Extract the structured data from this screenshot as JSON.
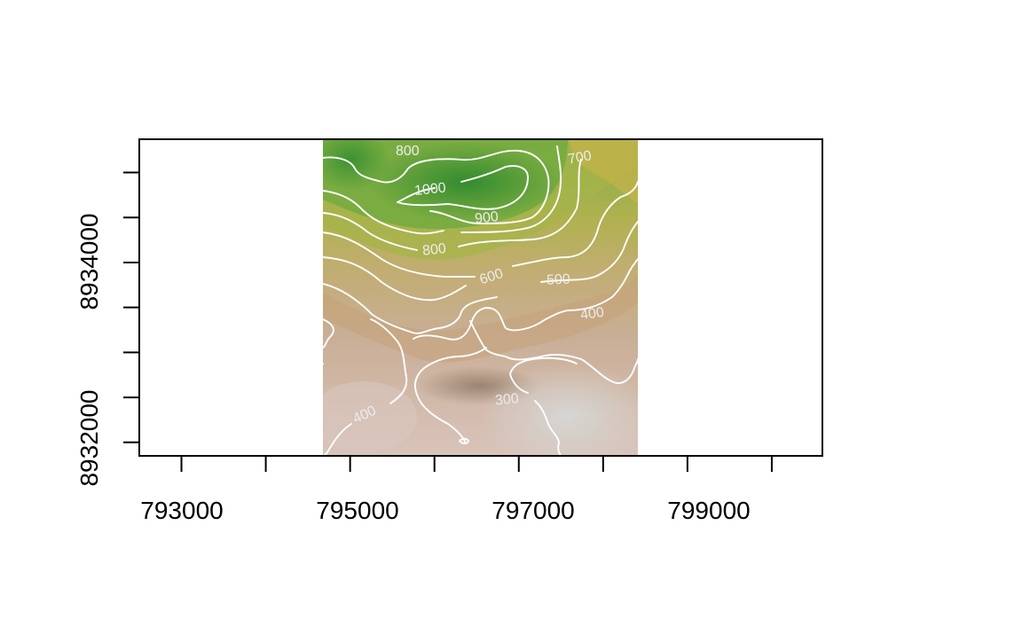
{
  "map": {
    "x_axis": {
      "ticks": [
        793000,
        794000,
        795000,
        796000,
        797000,
        798000,
        799000,
        800000
      ],
      "labels": [
        "793000",
        "795000",
        "797000",
        "799000"
      ],
      "range": [
        792500,
        800600
      ]
    },
    "y_axis": {
      "ticks": [
        8932000,
        8932500,
        8933000,
        8933500,
        8934000,
        8934500,
        8935000
      ],
      "labels": [
        "8932000",
        "8934000"
      ],
      "range": [
        8931850,
        8935370
      ]
    },
    "raster_extent": {
      "x": [
        794600,
        798180
      ],
      "y": [
        8931860,
        8935370
      ]
    },
    "contour_labels": [
      "800",
      "700",
      "1000",
      "900",
      "800",
      "600",
      "500",
      "400",
      "400",
      "300"
    ],
    "colors": {
      "high": "#3f9a35",
      "upper": "#8db340",
      "middle": "#c2b15f",
      "lower": "#c4a684",
      "low": "#dcc6be",
      "lowest": "#d2d2d0",
      "contour": "#ffffff"
    }
  }
}
